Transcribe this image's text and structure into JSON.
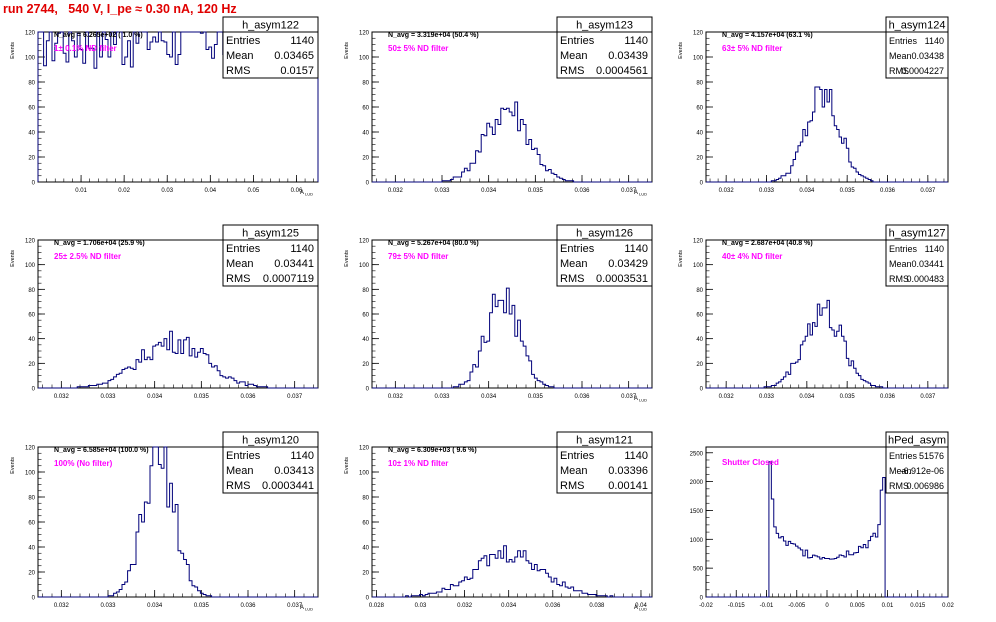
{
  "title": "run 2744,   540 V, I_pe ≈ 0.30 nA, 120 Hz",
  "chart_data": [
    {
      "type": "bar",
      "name": "h_asym122",
      "ylabel": "Events",
      "xlabel": "A_LUD",
      "ylim": [
        0,
        120
      ],
      "xlim": [
        0.0,
        0.065
      ],
      "xticks": [
        0.01,
        0.02,
        0.03,
        0.04,
        0.05,
        0.06
      ],
      "yticks": [
        0,
        20,
        40,
        60,
        80,
        100,
        120
      ],
      "stats": {
        "entries": "1140",
        "mean": "0.03465",
        "rms": "0.0157"
      },
      "header": "N_avg = 6.265e+02 ( 1.0 %)",
      "annotation": "1± 0.1% ND filter",
      "peaks": [
        [
          0.019,
          1.2,
          57
        ],
        [
          0.05,
          1.2,
          62
        ]
      ]
    },
    {
      "type": "bar",
      "name": "h_asym123",
      "ylabel": "Events",
      "xlabel": "A_LUD",
      "ylim": [
        0,
        120
      ],
      "xlim": [
        0.0315,
        0.0375
      ],
      "xticks": [
        0.032,
        0.033,
        0.034,
        0.035,
        0.036,
        0.037
      ],
      "yticks": [
        0,
        20,
        40,
        60,
        80,
        100,
        120
      ],
      "stats": {
        "entries": "1140",
        "mean": "0.03439",
        "rms": "0.0004561"
      },
      "header": "N_avg = 3.319e+04 (50.4 %)",
      "annotation": "50± 5% ND filter",
      "peaks": [
        [
          0.0344,
          0.00046,
          60
        ]
      ]
    },
    {
      "type": "bar",
      "name": "h_asym124",
      "ylabel": "Events",
      "xlabel": "",
      "ylim": [
        0,
        120
      ],
      "xlim": [
        0.0315,
        0.0375
      ],
      "xticks": [
        0.032,
        0.033,
        0.034,
        0.035,
        0.036,
        0.037
      ],
      "yticks": [
        0,
        20,
        40,
        60,
        80,
        100,
        120
      ],
      "stats": {
        "entries": "1140",
        "mean": "0.03438",
        "rms": "0.0004227"
      },
      "header": "N_avg = 4.157e+04 (63.1 %)",
      "annotation": "63± 5% ND filter",
      "peaks": [
        [
          0.0344,
          0.00042,
          68
        ]
      ]
    },
    {
      "type": "bar",
      "name": "h_asym125",
      "ylabel": "Events",
      "xlabel": "",
      "ylim": [
        0,
        120
      ],
      "xlim": [
        0.0315,
        0.0375
      ],
      "xticks": [
        0.032,
        0.033,
        0.034,
        0.035,
        0.036,
        0.037
      ],
      "yticks": [
        0,
        20,
        40,
        60,
        80,
        100,
        120
      ],
      "stats": {
        "entries": "1140",
        "mean": "0.03441",
        "rms": "0.0007119"
      },
      "header": "N_avg = 1.706e+04 (25.9 %)",
      "annotation": "25± 2.5% ND filter",
      "peaks": [
        [
          0.0344,
          0.00071,
          38
        ]
      ]
    },
    {
      "type": "bar",
      "name": "h_asym126",
      "ylabel": "Events",
      "xlabel": "A_LUD",
      "ylim": [
        0,
        120
      ],
      "xlim": [
        0.0315,
        0.0375
      ],
      "xticks": [
        0.032,
        0.033,
        0.034,
        0.035,
        0.036,
        0.037
      ],
      "yticks": [
        0,
        20,
        40,
        60,
        80,
        100,
        120
      ],
      "stats": {
        "entries": "1140",
        "mean": "0.03429",
        "rms": "0.0003531"
      },
      "header": "N_avg = 5.267e+04 (80.0 %)",
      "annotation": "79± 5% ND filter",
      "peaks": [
        [
          0.0343,
          0.00035,
          74
        ]
      ]
    },
    {
      "type": "bar",
      "name": "h_asym127",
      "ylabel": "Events",
      "xlabel": "",
      "ylim": [
        0,
        120
      ],
      "xlim": [
        0.0315,
        0.0375
      ],
      "xticks": [
        0.032,
        0.033,
        0.034,
        0.035,
        0.036,
        0.037
      ],
      "yticks": [
        0,
        20,
        40,
        60,
        80,
        100,
        120
      ],
      "stats": {
        "entries": "1140",
        "mean": "0.03441",
        "rms": "0.000483"
      },
      "header": "N_avg = 2.687e+04 (40.8 %)",
      "annotation": "40± 4% ND filter",
      "peaks": [
        [
          0.0344,
          0.00048,
          62
        ]
      ]
    },
    {
      "type": "bar",
      "name": "h_asym120",
      "ylabel": "Events",
      "xlabel": "A_LUD",
      "ylim": [
        0,
        120
      ],
      "xlim": [
        0.0315,
        0.0375
      ],
      "xticks": [
        0.032,
        0.033,
        0.034,
        0.035,
        0.036,
        0.037
      ],
      "yticks": [
        0,
        20,
        40,
        60,
        80,
        100,
        120
      ],
      "stats": {
        "entries": "1140",
        "mean": "0.03413",
        "rms": "0.0003441"
      },
      "header": "N_avg = 6.585e+04 (100.0 %)",
      "annotation": "100% (No filter)",
      "peaks": [
        [
          0.0341,
          0.00034,
          110
        ]
      ]
    },
    {
      "type": "bar",
      "name": "h_asym121",
      "ylabel": "Events",
      "xlabel": "A_LUD",
      "ylim": [
        0,
        120
      ],
      "xlim": [
        0.0278,
        0.0405
      ],
      "xticks": [
        0.028,
        0.03,
        0.032,
        0.034,
        0.036,
        0.038,
        0.04
      ],
      "yticks": [
        0,
        20,
        40,
        60,
        80,
        100,
        120
      ],
      "stats": {
        "entries": "1140",
        "mean": "0.03396",
        "rms": "0.00141"
      },
      "header": "N_avg = 6.309e+03 ( 9.6 %)",
      "annotation": "10± 1% ND filter",
      "peaks": [
        [
          0.034,
          0.0016,
          34
        ]
      ]
    },
    {
      "type": "bar",
      "name": "hPed_asym",
      "ylabel": "",
      "xlabel": "",
      "ylim": [
        0,
        2600
      ],
      "xlim": [
        -0.02,
        0.02
      ],
      "xticks": [
        -0.02,
        -0.015,
        -0.01,
        -0.005,
        0,
        0.005,
        0.01,
        0.015,
        0.02
      ],
      "yticks": [
        0,
        500,
        1000,
        1500,
        2000,
        2500
      ],
      "stats": {
        "entries": "51576",
        "mean": "-6.912e-06",
        "rms": "0.006986"
      },
      "header": "",
      "annotation": "Shutter Closed",
      "shape": "pedestal"
    }
  ],
  "stats_labels": {
    "entries": "Entries",
    "mean": "Mean",
    "rms": "RMS"
  },
  "colors": {
    "histogram": "#00007a",
    "annotation": "#ff00ff",
    "title": "#e00000"
  }
}
